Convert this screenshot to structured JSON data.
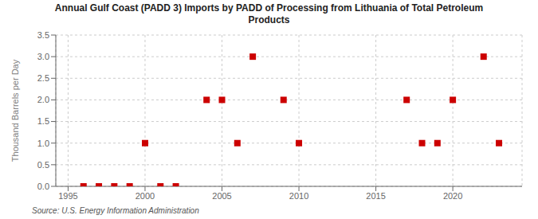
{
  "chart_data": {
    "type": "scatter",
    "title": "Annual Gulf Coast (PADD 3) Imports by PADD of Processing from Lithuania of Total Petroleum\nProducts",
    "y_label": "Thousand Barrels per Day",
    "annotations": [
      "Source: U.S. Energy Information Administration"
    ],
    "x": [
      1996,
      1997,
      1998,
      1999,
      2000,
      2001,
      2002,
      2004,
      2005,
      2006,
      2007,
      2009,
      2010,
      2017,
      2018,
      2019,
      2020,
      2022,
      2023
    ],
    "values": [
      0.0,
      0.0,
      0.0,
      0.0,
      1.0,
      0.0,
      0.0,
      2.0,
      2.0,
      1.0,
      3.0,
      2.0,
      1.0,
      2.0,
      1.0,
      1.0,
      2.0,
      3.0,
      1.0
    ],
    "color": "#cc0000",
    "marker": "square",
    "xlim": [
      1994.2,
      2024.5
    ],
    "xticks": [
      1995,
      2000,
      2005,
      2010,
      2015,
      2020
    ],
    "ylim": [
      0,
      3.5
    ],
    "yticks": [
      {
        "value": 0,
        "label": "0.0"
      },
      0.5,
      {
        "value": 1,
        "label": "1.0"
      },
      1.5,
      {
        "value": 2,
        "label": "2.0"
      },
      2.5,
      {
        "value": 3,
        "label": "3.0"
      },
      3.5
    ],
    "grid": true
  }
}
